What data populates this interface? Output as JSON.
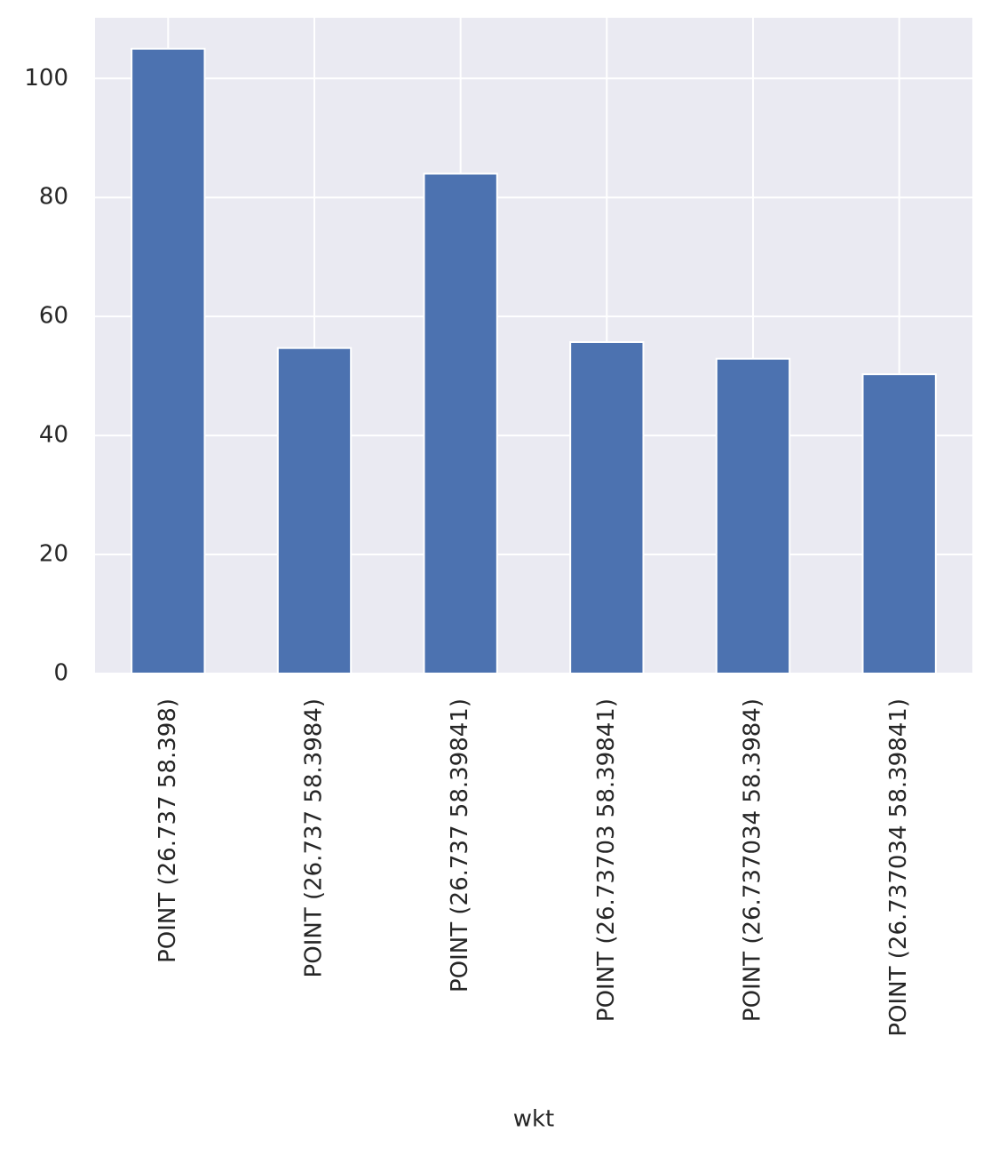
{
  "chart_data": {
    "type": "bar",
    "x_label": "wkt",
    "categories": [
      "POINT (26.737 58.398)",
      "POINT (26.737 58.3984)",
      "POINT (26.737 58.39841)",
      "POINT (26.73703 58.39841)",
      "POINT (26.737034 58.3984)",
      "POINT (26.737034 58.39841)"
    ],
    "values": [
      105,
      54.7,
      84,
      55.7,
      52.9,
      50.3
    ],
    "color": "#4c72b0",
    "ylim": [
      0,
      110.2
    ],
    "yticks": [
      0,
      20,
      40,
      60,
      80,
      100
    ],
    "grid": true
  }
}
